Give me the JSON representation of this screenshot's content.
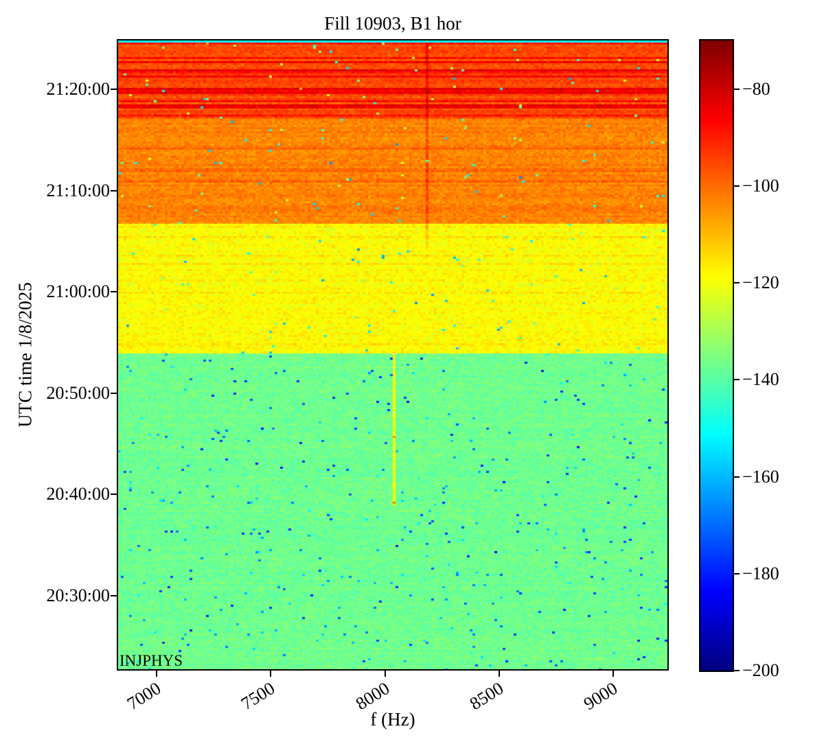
{
  "chart_data": {
    "type": "heatmap",
    "subtype": "spectrogram",
    "title": "Fill 10903, B1 hor",
    "xlabel": "f (Hz)",
    "ylabel": "UTC time 1/8/2025",
    "annotation": "INJPHYS",
    "x_ticks": [
      "7000",
      "7500",
      "8000",
      "8500",
      "9000"
    ],
    "x_tick_values": [
      7000,
      7500,
      8000,
      8500,
      9000
    ],
    "x_range_hz": [
      6830,
      9240
    ],
    "y_ticks": [
      "21:20:00",
      "21:10:00",
      "21:00:00",
      "20:50:00",
      "20:40:00",
      "20:30:00"
    ],
    "time_axis": {
      "date": "1/8/2025",
      "top": "21:24:40",
      "bottom": "20:22:40"
    },
    "grid": false,
    "legend": false,
    "colorbar": {
      "colormap": "jet",
      "vmin": -200,
      "vmax": -70,
      "tick_labels": [
        "−80",
        "−100",
        "−120",
        "−140",
        "−160",
        "−180",
        "−200"
      ],
      "tick_values": [
        -80,
        -100,
        -120,
        -140,
        -160,
        -180,
        -200
      ],
      "position": "right"
    },
    "bands": [
      {
        "label": "top-edge-cyan-row",
        "time_from": "21:24:30",
        "time_to": "21:24:40",
        "mean_db": -151,
        "noise_db": 3,
        "row_streak_prob": 0,
        "row_streak_db": 0,
        "row_jitter_db": 0.5,
        "speck_prob": 0,
        "speck_drop_db": 0
      },
      {
        "label": "hot-red-band-with-horizontal-streaks",
        "time_from": "21:17:00",
        "time_to": "21:24:30",
        "mean_db": -96,
        "noise_db": 4.5,
        "row_streak_prob": 0.38,
        "row_streak_db": 11,
        "row_jitter_db": 2,
        "speck_prob": 0.005,
        "speck_drop_db": 45
      },
      {
        "label": "orange-band",
        "time_from": "21:06:40",
        "time_to": "21:17:00",
        "mean_db": -103,
        "noise_db": 4.5,
        "row_streak_prob": 0.12,
        "row_streak_db": 4,
        "row_jitter_db": 1.5,
        "speck_prob": 0.005,
        "speck_drop_db": 40
      },
      {
        "label": "yellow-band",
        "time_from": "20:53:45",
        "time_to": "21:06:40",
        "mean_db": -119,
        "noise_db": 5,
        "row_streak_prob": 0.08,
        "row_streak_db": 3,
        "row_jitter_db": 1.2,
        "speck_prob": 0.006,
        "speck_drop_db": 30
      },
      {
        "label": "green-quiet-band",
        "time_from": "20:22:40",
        "time_to": "20:53:45",
        "mean_db": -137,
        "noise_db": 4.5,
        "row_streak_prob": 0,
        "row_streak_db": 0,
        "row_jitter_db": 1,
        "speck_prob": 0.012,
        "speck_drop_db": 30
      }
    ],
    "line_features": [
      {
        "label": "dark-red-vertical-line",
        "f_hz": 8180,
        "time_from": "21:01:40",
        "time_to": "21:24:40",
        "boost_db": 8,
        "fade_below": "21:06:40"
      },
      {
        "label": "yellow-vertical-line",
        "f_hz": 8045,
        "time_from": "20:38:50",
        "time_to": "20:53:45",
        "boost_db": 17,
        "hot_spots": [
          {
            "time": "20:45:30",
            "db": -105
          },
          {
            "time": "20:39:05",
            "db": -102
          }
        ]
      }
    ]
  }
}
